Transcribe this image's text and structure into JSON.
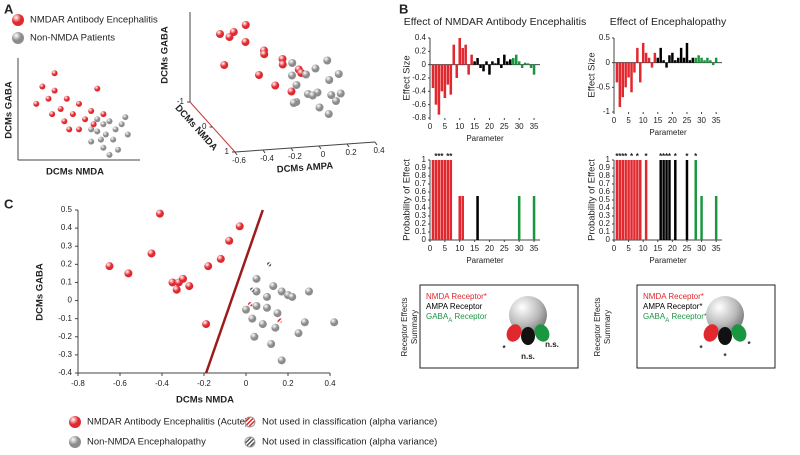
{
  "panels": [
    "A",
    "B",
    "C"
  ],
  "chart_data": [
    {
      "type": "scatter",
      "xlabel": "DCMs NMDA",
      "ylabel": "DCMs GABA",
      "xlim": [
        0,
        1
      ],
      "ylim": [
        0,
        1
      ],
      "series": [
        {
          "name": "NMDAR Antibody Encephalitis",
          "color": "#e0282e",
          "x": [
            0.15,
            0.2,
            0.25,
            0.3,
            0.35,
            0.4,
            0.28,
            0.45,
            0.5,
            0.38,
            0.55,
            0.6,
            0.42,
            0.3,
            0.65,
            0.5,
            0.62,
            0.7
          ],
          "y": [
            0.55,
            0.72,
            0.6,
            0.68,
            0.5,
            0.6,
            0.45,
            0.45,
            0.55,
            0.38,
            0.4,
            0.48,
            0.3,
            0.85,
            0.7,
            0.3,
            0.35,
            0.45
          ]
        },
        {
          "name": "Non-NMDA Patients",
          "color": "#8c8c8c",
          "x": [
            0.6,
            0.65,
            0.7,
            0.72,
            0.75,
            0.8,
            0.68,
            0.78,
            0.85,
            0.9,
            0.82,
            0.7,
            0.6,
            0.88,
            0.75,
            0.65
          ],
          "y": [
            0.3,
            0.4,
            0.35,
            0.25,
            0.38,
            0.3,
            0.2,
            0.2,
            0.35,
            0.25,
            0.1,
            0.12,
            0.18,
            0.42,
            0.05,
            0.28
          ]
        }
      ]
    },
    {
      "type": "scatter3d",
      "xlabel": "DCMs AMPA",
      "ylabel": "DCMs NMDA",
      "zlabel": "DCMs GABA",
      "xlim": [
        -0.6,
        0.4
      ],
      "ylim": [
        -1,
        1
      ],
      "zlim": [
        0,
        1
      ],
      "xticks": [
        -0.6,
        -0.4,
        -0.2,
        0,
        0.2,
        0.4
      ],
      "yticks": [
        -1,
        0,
        1
      ],
      "series": [
        {
          "color": "#e0282e",
          "x": [
            -0.45,
            -0.4,
            -0.35,
            -0.3,
            -0.25,
            -0.2,
            -0.15,
            -0.1,
            -0.3,
            -0.05,
            0,
            -0.5,
            -0.2,
            0.05,
            -0.1
          ],
          "y": [
            -0.6,
            -0.3,
            -0.8,
            -0.4,
            -0.7,
            -0.2,
            -0.5,
            0,
            0.2,
            -0.3,
            0.1,
            -0.1,
            0.3,
            -0.1,
            0.4
          ],
          "z": [
            0.85,
            0.95,
            0.75,
            0.8,
            0.9,
            0.75,
            0.62,
            0.7,
            0.6,
            0.55,
            0.6,
            0.65,
            0.5,
            0.5,
            0.45
          ]
        },
        {
          "color": "#8c8c8c",
          "x": [
            0,
            0.05,
            0.1,
            0.15,
            0.2,
            0.25,
            0.3,
            -0.05,
            0.1,
            0.2,
            0.35,
            0.05,
            0.15,
            -0.1,
            0.25,
            0.3,
            0,
            0.1
          ],
          "y": [
            0,
            0.2,
            -0.2,
            0,
            0.3,
            -0.1,
            0.1,
            0.3,
            0.4,
            -0.4,
            -0.3,
            -0.5,
            0.5,
            0.5,
            0.2,
            -0.5,
            -0.2,
            0.1
          ],
          "z": [
            0.4,
            0.35,
            0.45,
            0.3,
            0.35,
            0.4,
            0.3,
            0.3,
            0.25,
            0.45,
            0.4,
            0.5,
            0.2,
            0.35,
            0.25,
            0.5,
            0.45,
            0.3
          ]
        }
      ]
    },
    {
      "type": "bar",
      "title": "Effect of NMDAR Antibody Encephalitis",
      "xlabel": "Parameter",
      "ylabel": "Effect Size",
      "xlim": [
        0,
        37
      ],
      "ylim": [
        -0.8,
        0.4
      ],
      "xticks": [
        0,
        5,
        10,
        15,
        20,
        25,
        30,
        35
      ],
      "yticks": [
        -0.8,
        -0.6,
        -0.4,
        -0.2,
        0,
        0.2,
        0.4
      ],
      "series": [
        {
          "color": "#e0282e",
          "x": [
            1,
            2,
            3,
            4,
            5,
            6,
            7,
            8,
            9,
            10,
            11,
            12,
            13,
            14
          ],
          "values": [
            -0.35,
            -0.6,
            -0.75,
            -0.4,
            -0.5,
            -0.3,
            -0.45,
            0.3,
            -0.2,
            0.4,
            0.25,
            0.3,
            -0.15,
            0.15
          ]
        },
        {
          "color": "#000000",
          "x": [
            15,
            16,
            17,
            18,
            19,
            20,
            21,
            22,
            23,
            24,
            25,
            26,
            27
          ],
          "values": [
            0.05,
            0.1,
            -0.05,
            -0.1,
            0.05,
            -0.15,
            0.05,
            0.02,
            0.1,
            -0.05,
            0.15,
            0.05,
            0.08
          ]
        },
        {
          "color": "#1a9641",
          "x": [
            28,
            29,
            30,
            31,
            32,
            33,
            34,
            35
          ],
          "values": [
            0.1,
            0.15,
            0.05,
            -0.05,
            0.03,
            0.02,
            -0.05,
            -0.15
          ]
        }
      ]
    },
    {
      "type": "bar",
      "title": "Effect of Encephalopathy",
      "xlabel": "Parameter",
      "ylabel": "Effect Size",
      "xlim": [
        0,
        37
      ],
      "ylim": [
        -1,
        0.5
      ],
      "xticks": [
        0,
        5,
        10,
        15,
        20,
        25,
        30,
        35
      ],
      "yticks": [
        -1,
        -0.5,
        0,
        0.5
      ],
      "series": [
        {
          "color": "#e0282e",
          "x": [
            1,
            2,
            3,
            4,
            5,
            6,
            7,
            8,
            9,
            10,
            11,
            12,
            13,
            14
          ],
          "values": [
            -0.4,
            -0.9,
            -0.7,
            -0.5,
            -0.3,
            -0.6,
            -0.2,
            0.3,
            -0.4,
            0.4,
            0.2,
            0.1,
            -0.1,
            0.2
          ]
        },
        {
          "color": "#000000",
          "x": [
            15,
            16,
            17,
            18,
            19,
            20,
            21,
            22,
            23,
            24,
            25,
            26,
            27
          ],
          "values": [
            0.1,
            0.3,
            0.05,
            -0.1,
            0.15,
            0.2,
            0.05,
            0.1,
            0.3,
            0.1,
            0.4,
            0.05,
            0.1
          ]
        },
        {
          "color": "#1a9641",
          "x": [
            28,
            29,
            30,
            31,
            32,
            33,
            34,
            35
          ],
          "values": [
            0.1,
            0.15,
            0.1,
            0.05,
            0.1,
            0.05,
            -0.05,
            0.1
          ]
        }
      ]
    },
    {
      "type": "bar",
      "xlabel": "Parameter",
      "ylabel": "Probability of Effect",
      "xlim": [
        0,
        37
      ],
      "ylim": [
        0,
        1
      ],
      "xticks": [
        0,
        5,
        10,
        15,
        20,
        25,
        30,
        35
      ],
      "yticks": [
        0,
        0.1,
        0.2,
        0.3,
        0.4,
        0.5,
        0.6,
        0.7,
        0.8,
        0.9,
        1
      ],
      "series": [
        {
          "color": "#e0282e",
          "x": [
            1,
            2,
            3,
            4,
            5,
            6,
            7,
            10,
            11
          ],
          "values": [
            1,
            1,
            1,
            1,
            1,
            1,
            1,
            0.55,
            0.55
          ]
        },
        {
          "color": "#000000",
          "x": [
            16
          ],
          "values": [
            0.55
          ]
        },
        {
          "color": "#1a9641",
          "x": [
            30,
            35
          ],
          "values": [
            0.55,
            0.55
          ]
        }
      ],
      "stars": [
        {
          "x": 2,
          "label": "*",
          "color": "#e0282e"
        },
        {
          "x": 3,
          "label": "*",
          "color": "#e0282e"
        },
        {
          "x": 4,
          "label": "*",
          "color": "#e0282e"
        },
        {
          "x": 6,
          "label": "*",
          "color": "#e0282e"
        },
        {
          "x": 7,
          "label": "*",
          "color": "#e0282e"
        }
      ]
    },
    {
      "type": "bar",
      "xlabel": "Parameter",
      "ylabel": "Probability of Effect",
      "xlim": [
        0,
        37
      ],
      "ylim": [
        0,
        1
      ],
      "xticks": [
        0,
        5,
        10,
        15,
        20,
        25,
        30,
        35
      ],
      "yticks": [
        0,
        0.1,
        0.2,
        0.3,
        0.4,
        0.5,
        0.6,
        0.7,
        0.8,
        0.9,
        1
      ],
      "series": [
        {
          "color": "#e0282e",
          "x": [
            1,
            2,
            3,
            4,
            5,
            6,
            7,
            8,
            9,
            11
          ],
          "values": [
            1,
            1,
            1,
            1,
            1,
            1,
            1,
            1,
            1,
            1
          ]
        },
        {
          "color": "#000000",
          "x": [
            16,
            17,
            18,
            19,
            21,
            25
          ],
          "values": [
            1,
            1,
            1,
            1,
            1,
            1
          ]
        },
        {
          "color": "#1a9641",
          "x": [
            28,
            30,
            35
          ],
          "values": [
            1,
            0.55,
            0.55
          ]
        }
      ],
      "stars": [
        {
          "x": 1,
          "label": "*",
          "color": "#e0282e"
        },
        {
          "x": 2,
          "label": "*",
          "color": "#e0282e"
        },
        {
          "x": 3,
          "label": "*",
          "color": "#e0282e"
        },
        {
          "x": 4,
          "label": "*",
          "color": "#e0282e"
        },
        {
          "x": 6,
          "label": "*",
          "color": "#e0282e"
        },
        {
          "x": 8,
          "label": "*",
          "color": "#e0282e"
        },
        {
          "x": 11,
          "label": "*",
          "color": "#e0282e"
        },
        {
          "x": 16,
          "label": "*",
          "color": "#000000"
        },
        {
          "x": 17,
          "label": "*",
          "color": "#000000"
        },
        {
          "x": 18,
          "label": "*",
          "color": "#000000"
        },
        {
          "x": 19,
          "label": "*",
          "color": "#000000"
        },
        {
          "x": 21,
          "label": "*",
          "color": "#000000"
        },
        {
          "x": 25,
          "label": "*",
          "color": "#000000"
        },
        {
          "x": 28,
          "label": "*",
          "color": "#1a9641"
        }
      ]
    },
    {
      "type": "scatter",
      "xlabel": "DCMs NMDA",
      "ylabel": "DCMs GABA",
      "xlim": [
        -0.8,
        0.4
      ],
      "ylim": [
        -0.4,
        0.5
      ],
      "xticks": [
        -0.8,
        -0.6,
        -0.4,
        -0.2,
        0,
        0.2,
        0.4
      ],
      "yticks": [
        -0.4,
        -0.3,
        -0.2,
        -0.1,
        0,
        0.1,
        0.2,
        0.3,
        0.4,
        0.5
      ],
      "series": [
        {
          "name": "NMDAR Antibody Encephalitis (Acute)",
          "color": "#e0282e",
          "x": [
            -0.65,
            -0.56,
            -0.41,
            -0.45,
            -0.35,
            -0.32,
            -0.3,
            -0.27,
            -0.18,
            -0.12,
            -0.08,
            -0.03,
            -0.19,
            -0.33
          ],
          "y": [
            0.19,
            0.15,
            0.48,
            0.26,
            0.1,
            0.1,
            0.12,
            0.08,
            0.19,
            0.23,
            0.33,
            0.41,
            -0.13,
            0.06
          ]
        },
        {
          "name": "Non-NMDA Encephalopathy",
          "color": "#8c8c8c",
          "x": [
            0.05,
            0.05,
            0.1,
            0.13,
            0.17,
            0.2,
            0.05,
            0.1,
            0.15,
            0.03,
            0.08,
            0.14,
            0.28,
            0.42,
            0.25,
            0.04,
            0.12,
            0.17,
            0,
            0.22,
            0.3
          ],
          "y": [
            0.12,
            0.05,
            0.02,
            0.08,
            0.05,
            0.03,
            -0.03,
            -0.04,
            -0.07,
            -0.1,
            -0.13,
            -0.15,
            -0.12,
            -0.12,
            -0.18,
            -0.2,
            -0.24,
            -0.33,
            -0.05,
            0.02,
            0.05
          ]
        },
        {
          "name": "Not used in classification (alpha variance)",
          "color": "#e0282e",
          "pattern": "striped",
          "x": [
            0.02,
            0.16
          ],
          "y": [
            -0.02,
            -0.11
          ]
        },
        {
          "name": "Not used in classification (alpha variance)",
          "color": "#555555",
          "pattern": "striped",
          "x": [
            0.11,
            0.03
          ],
          "y": [
            0.2,
            0.06
          ]
        }
      ],
      "lines": [
        {
          "color": "#9b1c1c",
          "x": [
            -0.19,
            0.08
          ],
          "y": [
            -0.4,
            0.5
          ]
        }
      ]
    }
  ],
  "summaries": [
    {
      "side": [
        "Receptor Effects",
        "Summary"
      ],
      "lines": [
        {
          "text": "NMDA Receptor*",
          "color": "#e0282e"
        },
        {
          "text": "AMPA Receptor",
          "color": "#000000"
        },
        {
          "text": "GABA",
          "sub": "A",
          "after": " Receptor",
          "color": "#1a9641"
        }
      ],
      "marks": [
        "*",
        "n.s.",
        "n.s."
      ]
    },
    {
      "side": [
        "Receptor Effects",
        "Summary"
      ],
      "lines": [
        {
          "text": "NMDA Receptor*",
          "color": "#e0282e"
        },
        {
          "text": "AMPA Receptor*",
          "color": "#000000"
        },
        {
          "text": "GABA",
          "sub": "A",
          "after": " Receptor*",
          "color": "#1a9641"
        }
      ],
      "marks": [
        "*",
        "*",
        "*"
      ]
    }
  ]
}
